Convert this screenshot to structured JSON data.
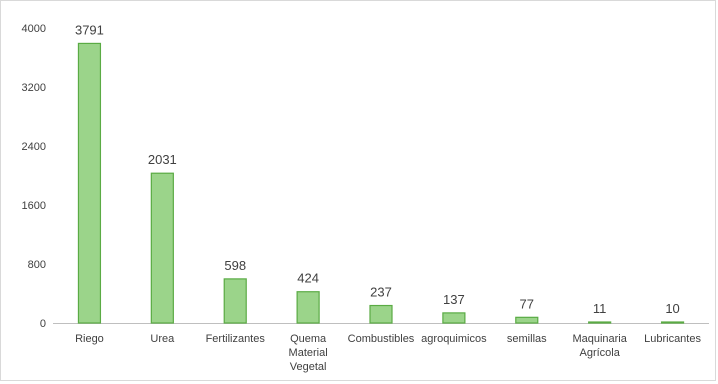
{
  "chart_data": {
    "type": "bar",
    "categories": [
      [
        "Riego"
      ],
      [
        "Urea"
      ],
      [
        "Fertilizantes"
      ],
      [
        "Quema",
        "Material",
        "Vegetal"
      ],
      [
        "Combustibles"
      ],
      [
        "agroquimicos"
      ],
      [
        "semillas"
      ],
      [
        "Maquinaria",
        "Agrícola"
      ],
      [
        "Lubricantes"
      ]
    ],
    "values": [
      3791,
      2031,
      598,
      424,
      237,
      137,
      77,
      11,
      10
    ],
    "data_labels": [
      "3791",
      "2031",
      "598",
      "424",
      "237",
      "137",
      "77",
      "11",
      "10"
    ],
    "yticks": [
      0,
      800,
      1600,
      2400,
      3200,
      4000
    ],
    "ytick_labels": [
      "0",
      "800",
      "1600",
      "2400",
      "3200",
      "4000"
    ],
    "ylim": [
      0,
      4000
    ],
    "grid": false,
    "legend": "none",
    "colors": {
      "bar_fill": "#9bd48a",
      "bar_stroke": "#5aab44",
      "axis": "#bfbfbf"
    }
  }
}
